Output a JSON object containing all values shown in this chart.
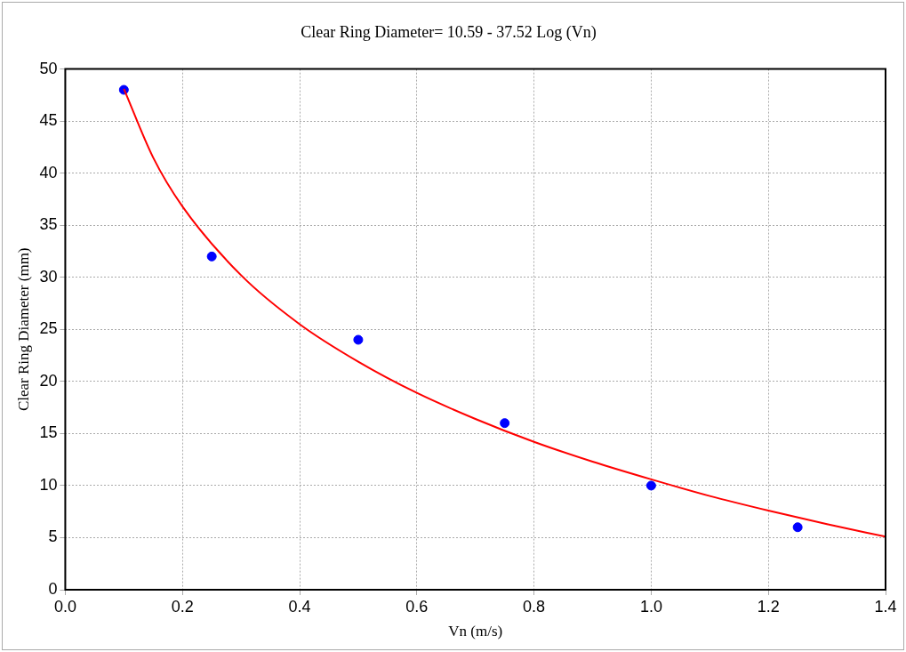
{
  "chart_data": {
    "type": "scatter",
    "title": "Clear Ring Diameter= 10.59 - 37.52 Log (Vn)",
    "xlabel": "Vn (m/s)",
    "ylabel": "Clear Ring Diameter (mm)",
    "xlim": [
      0,
      1.4
    ],
    "xticks": [
      {
        "value": 0,
        "label": "0.0"
      },
      0.2,
      0.4,
      0.6,
      0.8,
      {
        "value": 1,
        "label": "1.0"
      },
      1.2,
      1.4
    ],
    "ylim": [
      0,
      50
    ],
    "yticks": [
      0,
      5,
      10,
      15,
      20,
      25,
      30,
      35,
      40,
      45,
      50
    ],
    "grid": true,
    "legend": false,
    "series": [
      {
        "type": "scatter",
        "color": "#0000ff",
        "marker": "circle",
        "x": [
          0.1,
          0.25,
          0.5,
          0.75,
          1.0,
          1.25
        ],
        "values": [
          48,
          32,
          24,
          16,
          10,
          6
        ]
      },
      {
        "type": "line",
        "color": "#ff0000",
        "marker": "none",
        "line_style": "solid",
        "x": [
          0.1,
          0.15,
          0.2,
          0.3,
          0.4,
          0.5,
          0.6,
          0.7,
          0.8,
          0.9,
          1.0,
          1.1,
          1.2,
          1.3,
          1.4
        ],
        "values": [
          48.1,
          41.5,
          36.8,
          30.2,
          25.5,
          21.9,
          18.9,
          16.4,
          14.2,
          12.3,
          10.6,
          9.0,
          7.6,
          6.3,
          5.1
        ]
      }
    ]
  }
}
